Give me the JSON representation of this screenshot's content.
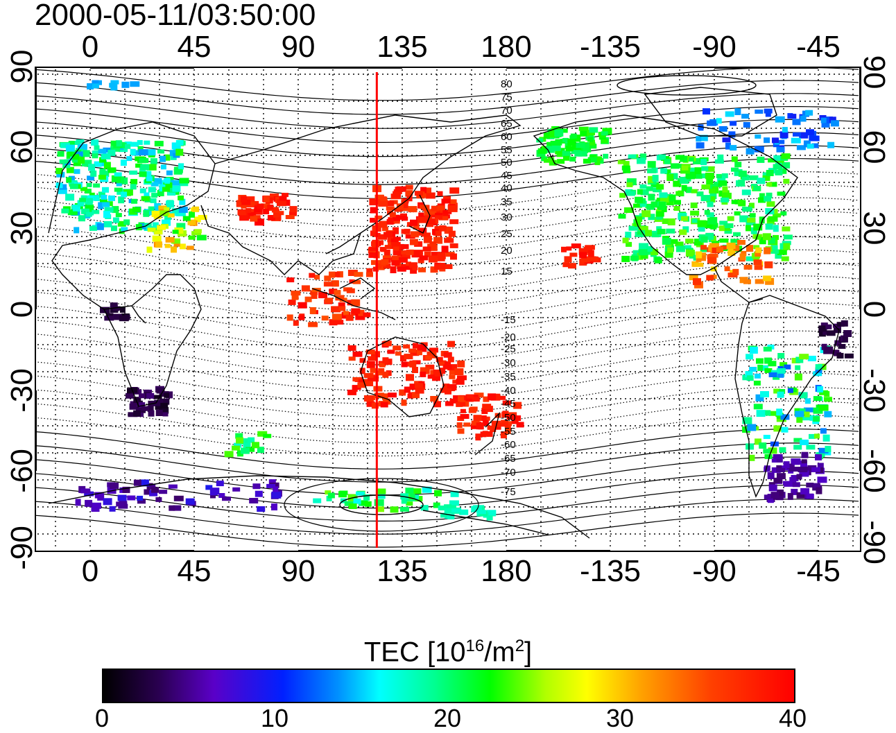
{
  "timestamp": "2000-05-11/03:50:00",
  "longitude_labels": [
    "0",
    "45",
    "90",
    "135",
    "180",
    "-135",
    "-90",
    "-45"
  ],
  "latitude_labels": [
    "90",
    "60",
    "30",
    "0",
    "-30",
    "-60",
    "-90"
  ],
  "magnetic_latitude_labels_north": [
    "80",
    "75",
    "70",
    "65",
    "60",
    "55",
    "50",
    "45",
    "40",
    "35",
    "30",
    "25",
    "20",
    "15"
  ],
  "magnetic_latitude_labels_south": [
    "-15",
    "-20",
    "-25",
    "-30",
    "-35",
    "-40",
    "-45",
    "-50",
    "-55",
    "-60",
    "-65",
    "-70",
    "-75"
  ],
  "colorbar": {
    "title": "TEC  [10",
    "title_sup": "16",
    "title_mid": "/m",
    "title_sup2": "2",
    "title_end": "]",
    "min": 0,
    "max": 40,
    "tick_labels": [
      "0",
      "10",
      "20",
      "30",
      "40"
    ]
  },
  "colors": {
    "marker_line": "#ff0000",
    "coastline": "#000000",
    "grid": "#000000"
  },
  "marker_longitude": 124
}
